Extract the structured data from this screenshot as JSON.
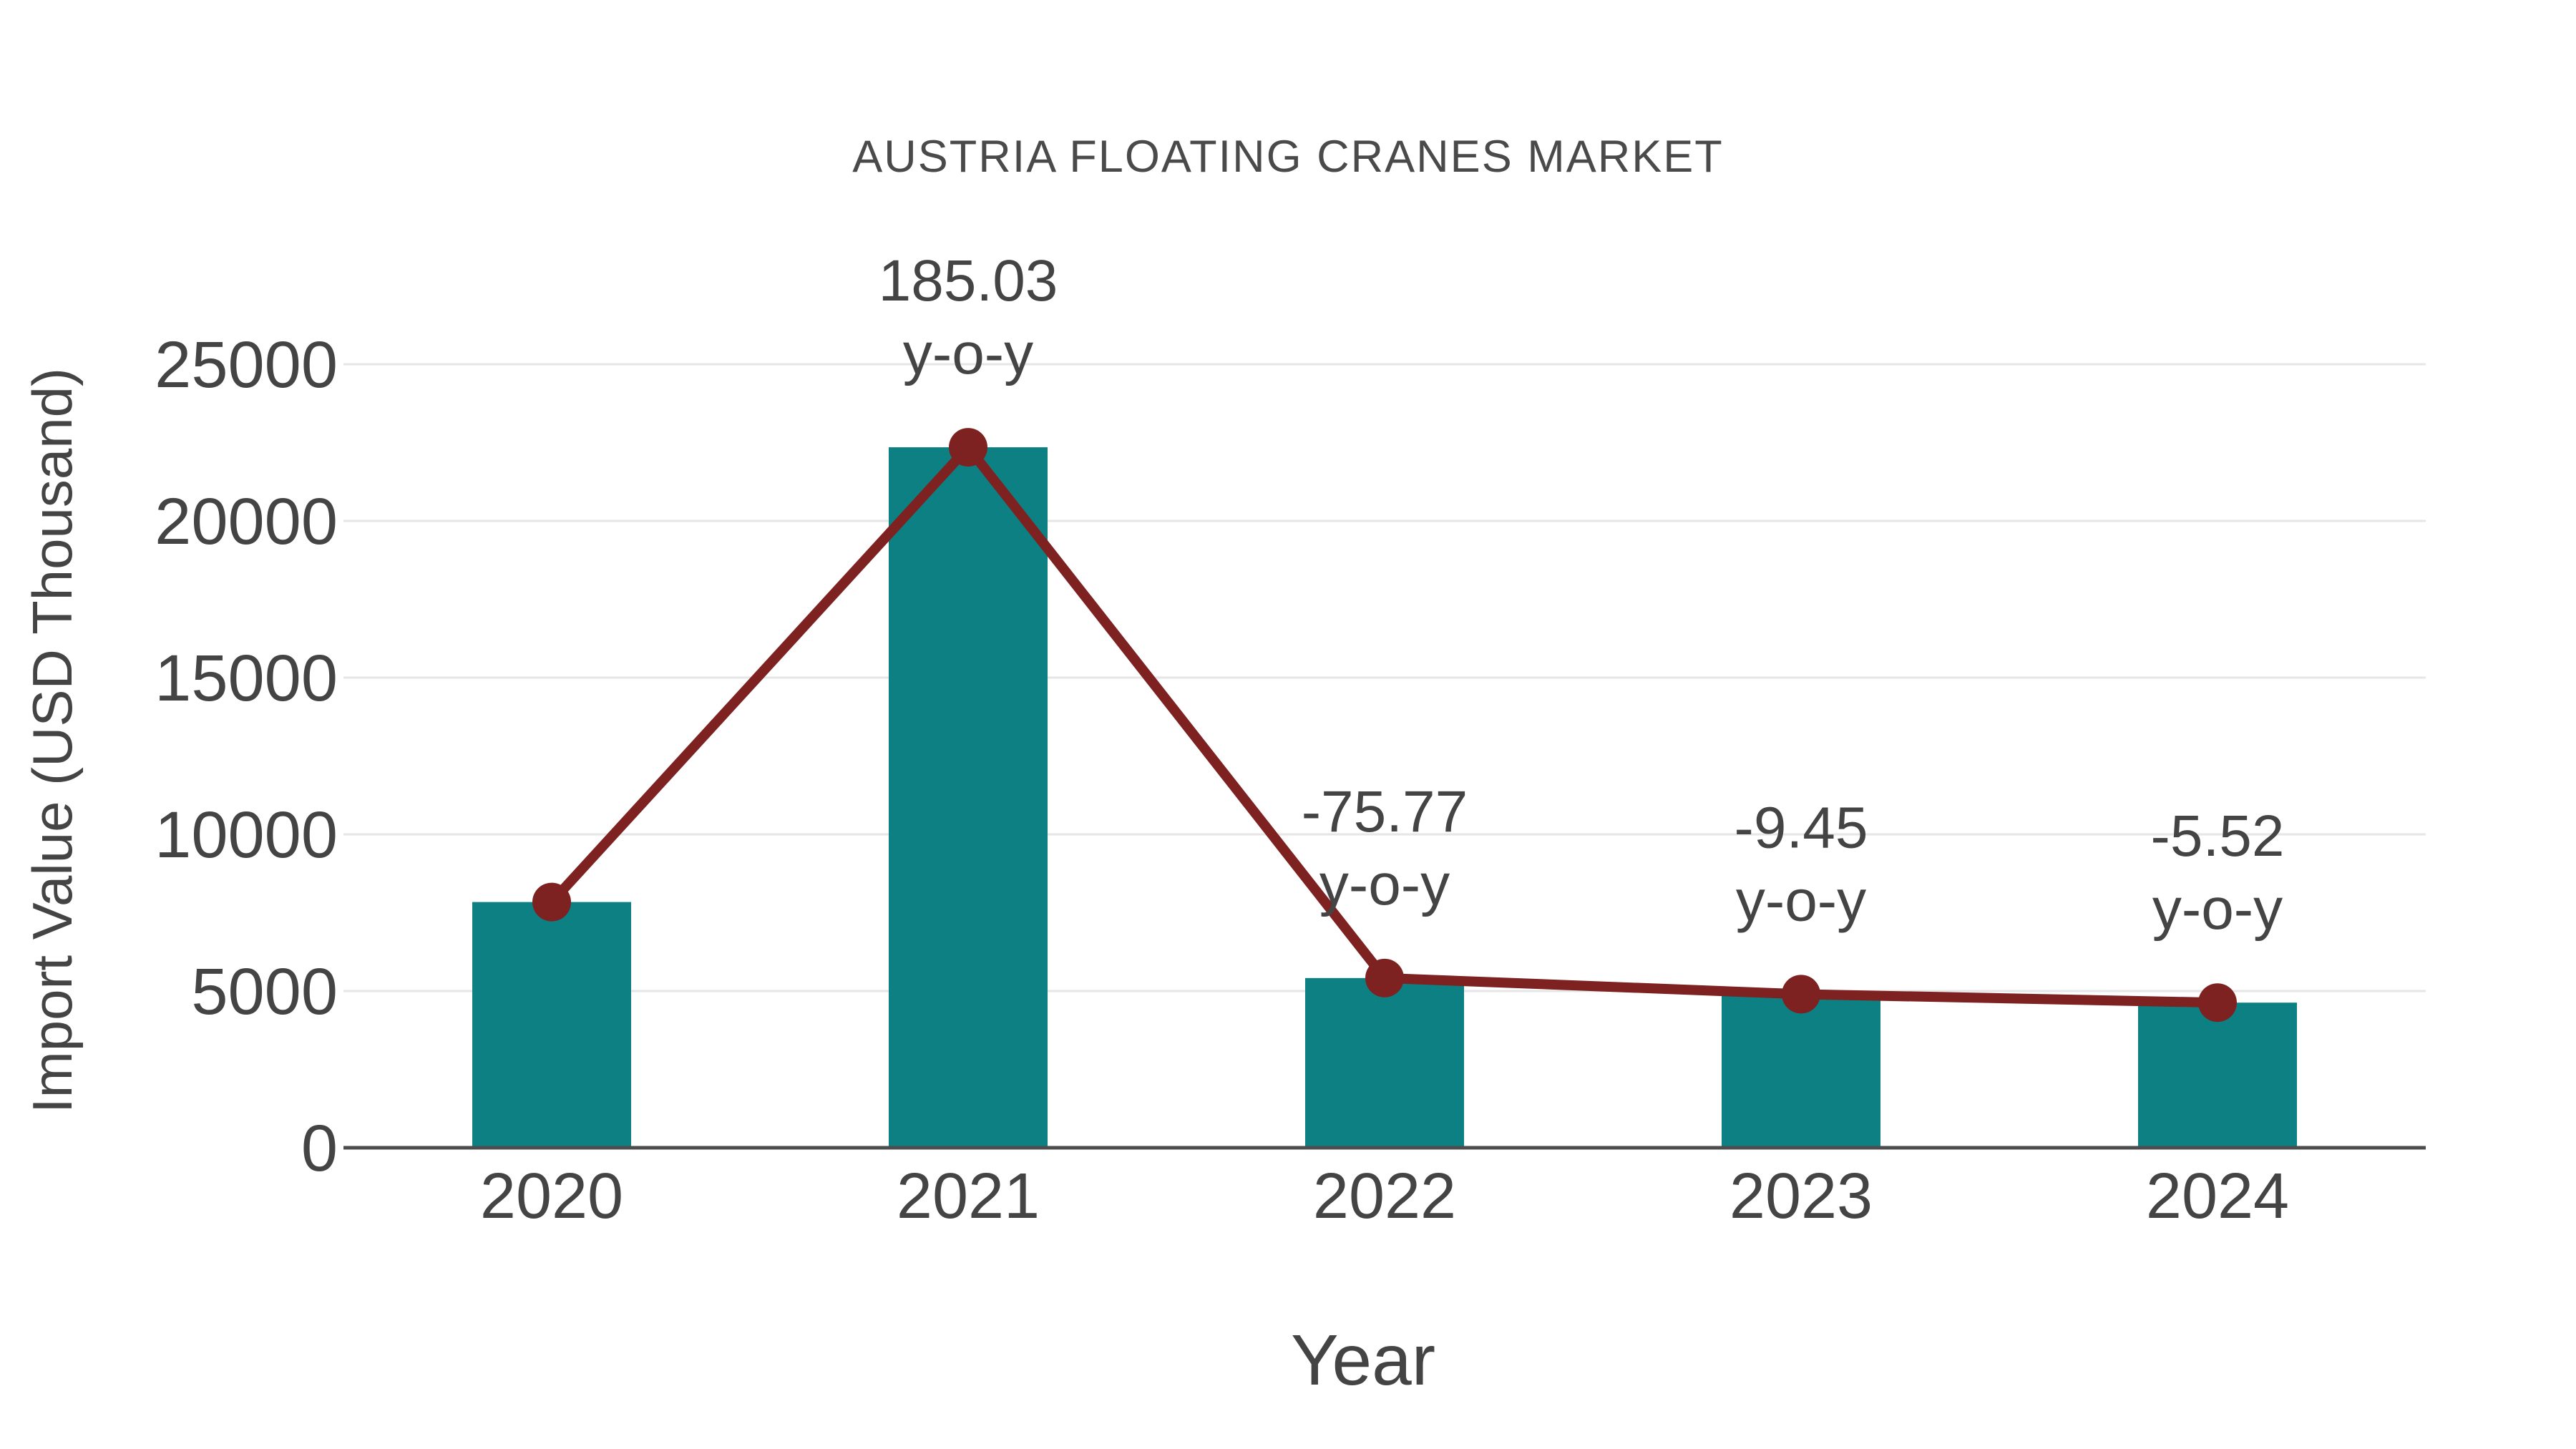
{
  "chart_data": {
    "type": "bar",
    "title": "AUSTRIA FLOATING CRANES MARKET",
    "xlabel": "Year",
    "ylabel": "Import Value (USD Thousand)",
    "categories": [
      "2020",
      "2021",
      "2022",
      "2023",
      "2024"
    ],
    "series": [
      {
        "name": "import-value-bars",
        "type": "bar",
        "values": [
          7840,
          22350,
          5415,
          4900,
          4630
        ]
      },
      {
        "name": "import-value-trend",
        "type": "line+markers",
        "values": [
          7840,
          22350,
          5415,
          4900,
          4630
        ]
      }
    ],
    "annotations": [
      {
        "category": "2021",
        "value_text": "185.03",
        "sub_text": "y-o-y"
      },
      {
        "category": "2022",
        "value_text": "-75.77",
        "sub_text": "y-o-y"
      },
      {
        "category": "2023",
        "value_text": "-9.45",
        "sub_text": "y-o-y"
      },
      {
        "category": "2024",
        "value_text": "-5.52",
        "sub_text": "y-o-y"
      }
    ],
    "ylim": [
      0,
      25000
    ],
    "yticks": [
      0,
      5000,
      10000,
      15000,
      20000,
      25000
    ],
    "grid": true,
    "legend": "none",
    "colors": {
      "bar": "#0d8083",
      "line": "#7e2121",
      "marker": "#7e2121",
      "text": "#444444",
      "grid": "#e6e6e6",
      "axis": "#4d4d4d",
      "background": "#ffffff"
    }
  }
}
